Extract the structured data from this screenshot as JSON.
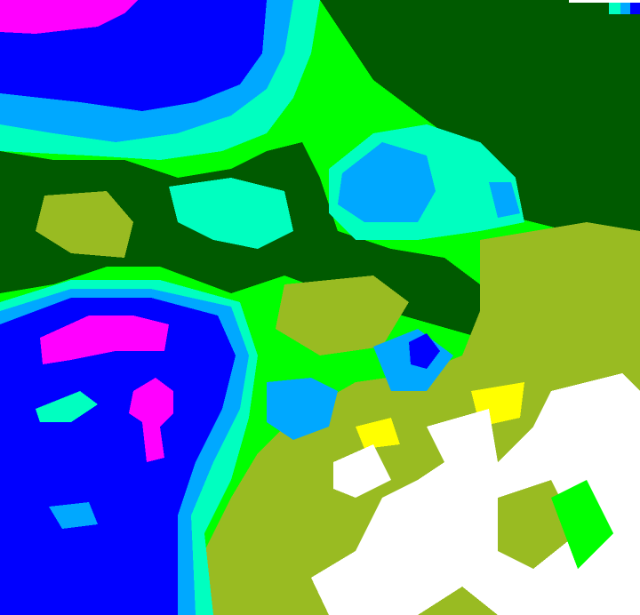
{
  "image": {
    "kind": "false-color raster field",
    "palette": {
      "magenta": "#ff00ff",
      "blue": "#0000ff",
      "light_blue": "#00a8ff",
      "aquamarine": "#00ffc0",
      "green": "#00ff00",
      "dark_green": "#005a00",
      "olive": "#99bb22",
      "yellow": "#ffff00",
      "white": "#ffffff"
    }
  }
}
